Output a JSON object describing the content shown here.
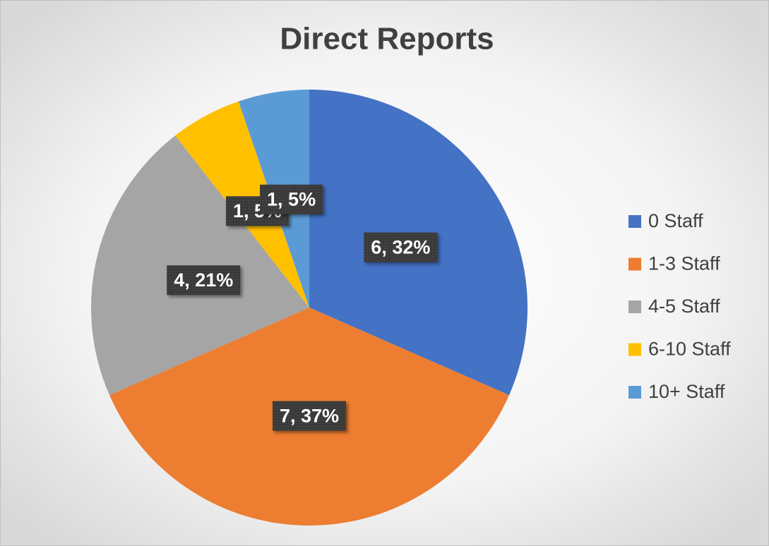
{
  "chart_data": {
    "type": "pie",
    "title": "Direct Reports",
    "categories": [
      "0 Staff",
      "1-3 Staff",
      "4-5 Staff",
      "6-10 Staff",
      "10+ Staff"
    ],
    "values": [
      6,
      7,
      4,
      1,
      1
    ],
    "value_labels": [
      "6, 32%",
      "7, 37%",
      "4, 21%",
      "1, 5%",
      "1, 5%"
    ],
    "colors": [
      "#4472c4",
      "#ed7d31",
      "#a5a5a5",
      "#ffc000",
      "#5b9bd5"
    ],
    "legend": "right"
  }
}
